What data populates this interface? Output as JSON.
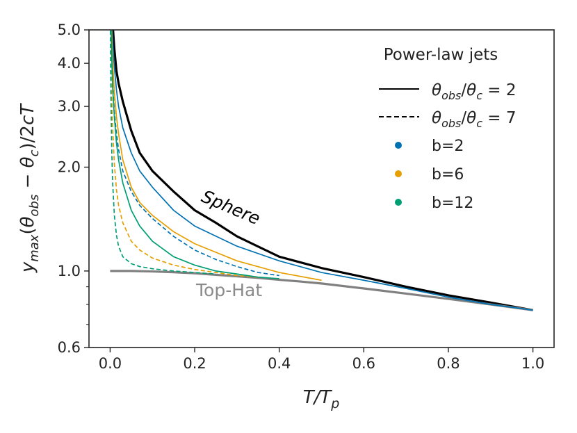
{
  "chart_data": {
    "type": "line",
    "title": "",
    "xlabel": "T/T_p",
    "ylabel": "y_max(θ_obs − θ_c)/2cT",
    "xlim": [
      -0.05,
      1.05
    ],
    "ylim": [
      0.6,
      5.0
    ],
    "yscale": "log",
    "xticks": [
      0.0,
      0.2,
      0.4,
      0.6,
      0.8,
      1.0
    ],
    "xtick_labels": [
      "0.0",
      "0.2",
      "0.4",
      "0.6",
      "0.8",
      "1.0"
    ],
    "yticks": [
      0.6,
      1.0,
      2.0,
      3.0,
      4.0,
      5.0
    ],
    "ytick_labels": [
      "0.6",
      "1.0",
      "2.0",
      "3.0",
      "4.0",
      "5.0"
    ],
    "yminor_ticks": [
      0.7,
      0.8,
      0.9
    ],
    "legend": {
      "title": "Power-law jets",
      "entries": [
        {
          "label": "θobs/θc = 2",
          "style": "solid"
        },
        {
          "label": "θobs/θc = 7",
          "style": "dashed"
        },
        {
          "label": "b=2",
          "marker": "dot",
          "color": "#0072b2"
        },
        {
          "label": "b=6",
          "marker": "dot",
          "color": "#e69f00"
        },
        {
          "label": "b=12",
          "marker": "dot",
          "color": "#009e73"
        }
      ]
    },
    "annotations": [
      {
        "text": "Sphere",
        "color": "#000000",
        "x": 0.34,
        "y": 1.45
      },
      {
        "text": "Top-Hat",
        "color": "#8a8a8a",
        "x": 0.29,
        "y": 0.93
      }
    ],
    "series": [
      {
        "name": "Sphere",
        "color": "#000000",
        "dash": "solid",
        "width": "thick",
        "x": [
          0.006,
          0.01,
          0.015,
          0.02,
          0.03,
          0.05,
          0.07,
          0.1,
          0.15,
          0.2,
          0.25,
          0.3,
          0.4,
          0.5,
          0.6,
          0.7,
          0.8,
          0.9,
          1.0
        ],
        "y": [
          5.2,
          4.4,
          3.8,
          3.5,
          3.1,
          2.55,
          2.2,
          1.95,
          1.7,
          1.5,
          1.38,
          1.26,
          1.1,
          1.02,
          0.96,
          0.9,
          0.85,
          0.81,
          0.77
        ]
      },
      {
        "name": "Top-Hat",
        "color": "#808080",
        "dash": "solid",
        "width": "thick",
        "x": [
          0.0,
          0.05,
          0.1,
          0.15,
          0.2,
          0.25,
          0.3,
          0.35,
          0.4,
          0.45,
          0.5,
          0.6,
          0.7,
          0.8,
          0.9,
          1.0
        ],
        "y": [
          1.0,
          1.0,
          0.997,
          0.992,
          0.985,
          0.975,
          0.965,
          0.955,
          0.943,
          0.932,
          0.92,
          0.89,
          0.86,
          0.83,
          0.8,
          0.77
        ]
      },
      {
        "name": "b=2, θobs/θc=2",
        "color": "#0072b2",
        "dash": "solid",
        "width": "thin",
        "x": [
          0.004,
          0.006,
          0.01,
          0.015,
          0.02,
          0.03,
          0.05,
          0.07,
          0.1,
          0.15,
          0.2,
          0.3,
          0.4,
          0.5,
          0.6,
          0.7,
          0.8,
          0.9,
          1.0
        ],
        "y": [
          5.2,
          4.6,
          3.9,
          3.35,
          3.0,
          2.6,
          2.2,
          1.95,
          1.75,
          1.5,
          1.35,
          1.18,
          1.07,
          0.99,
          0.94,
          0.89,
          0.84,
          0.8,
          0.77
        ]
      },
      {
        "name": "b=2, θobs/θc=7",
        "color": "#0072b2",
        "dash": "dashed",
        "width": "thin",
        "x": [
          0.002,
          0.004,
          0.006,
          0.01,
          0.015,
          0.02,
          0.03,
          0.05,
          0.07,
          0.1,
          0.15,
          0.2,
          0.25,
          0.3,
          0.35,
          0.4
        ],
        "y": [
          5.2,
          4.0,
          3.5,
          2.9,
          2.5,
          2.25,
          1.95,
          1.7,
          1.55,
          1.42,
          1.26,
          1.15,
          1.08,
          1.03,
          0.99,
          0.97
        ]
      },
      {
        "name": "b=6, θobs/θc=2",
        "color": "#e69f00",
        "dash": "solid",
        "width": "thin",
        "x": [
          0.003,
          0.006,
          0.01,
          0.015,
          0.02,
          0.03,
          0.05,
          0.07,
          0.1,
          0.15,
          0.2,
          0.3,
          0.4,
          0.5
        ],
        "y": [
          5.2,
          4.0,
          3.3,
          2.8,
          2.5,
          2.1,
          1.75,
          1.58,
          1.45,
          1.3,
          1.2,
          1.07,
          0.99,
          0.94
        ]
      },
      {
        "name": "b=6, θobs/θc=7",
        "color": "#e69f00",
        "dash": "dashed",
        "width": "thin",
        "x": [
          0.001,
          0.002,
          0.004,
          0.006,
          0.01,
          0.015,
          0.02,
          0.03,
          0.05,
          0.07,
          0.1,
          0.15,
          0.2,
          0.25,
          0.3,
          0.35
        ],
        "y": [
          5.2,
          4.1,
          3.1,
          2.6,
          2.05,
          1.72,
          1.55,
          1.38,
          1.22,
          1.15,
          1.09,
          1.04,
          1.01,
          0.99,
          0.97,
          0.96
        ]
      },
      {
        "name": "b=12, θobs/θc=2",
        "color": "#009e73",
        "dash": "solid",
        "width": "thin",
        "x": [
          0.002,
          0.004,
          0.006,
          0.01,
          0.015,
          0.02,
          0.03,
          0.05,
          0.07,
          0.1,
          0.15,
          0.2,
          0.25,
          0.3,
          0.35,
          0.4
        ],
        "y": [
          5.2,
          4.1,
          3.4,
          2.8,
          2.35,
          2.1,
          1.8,
          1.5,
          1.35,
          1.22,
          1.1,
          1.04,
          1.0,
          0.98,
          0.96,
          0.95
        ]
      },
      {
        "name": "b=12, θobs/θc=7",
        "color": "#009e73",
        "dash": "dashed",
        "width": "thin",
        "x": [
          0.0005,
          0.001,
          0.002,
          0.004,
          0.006,
          0.01,
          0.015,
          0.02,
          0.03,
          0.05,
          0.07,
          0.1,
          0.15,
          0.2,
          0.25
        ],
        "y": [
          5.2,
          4.2,
          3.1,
          2.2,
          1.8,
          1.45,
          1.27,
          1.18,
          1.1,
          1.05,
          1.03,
          1.015,
          1.0,
          0.99,
          0.98
        ]
      }
    ]
  }
}
